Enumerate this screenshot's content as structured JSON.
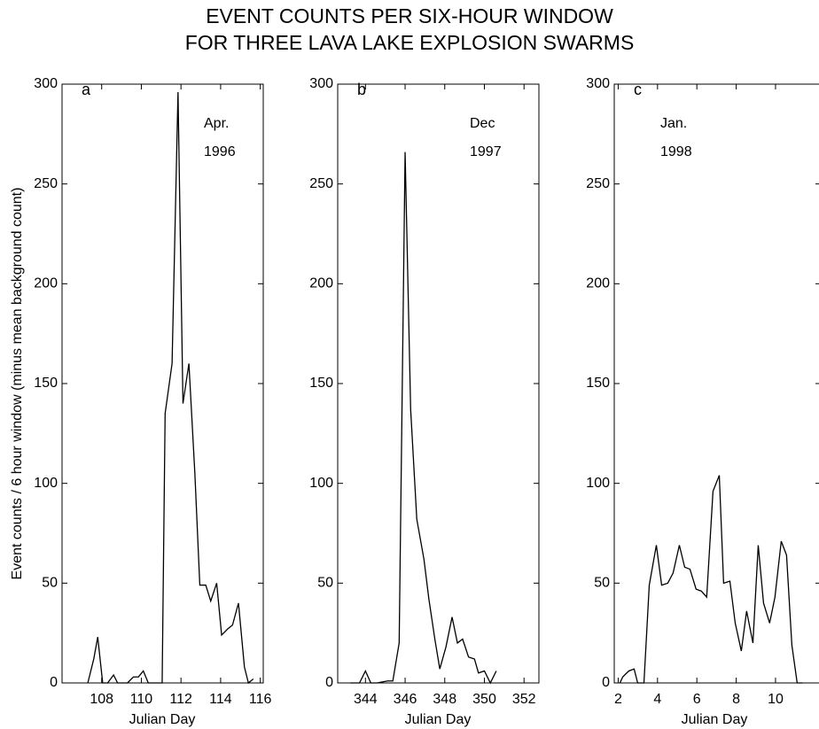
{
  "title": [
    "EVENT COUNTS PER SIX-HOUR WINDOW",
    "FOR THREE LAVA LAKE EXPLOSION SWARMS"
  ],
  "chart_data": [
    {
      "type": "line",
      "panel": "a",
      "annotation": [
        "Apr.",
        "1996"
      ],
      "ylabel": "Event counts / 6 hour window (minus mean background count)",
      "xlabel": "Julian Day",
      "xlim": [
        106,
        116.15
      ],
      "xticks": [
        108,
        110,
        112,
        114,
        116
      ],
      "ylim": [
        0,
        300
      ],
      "yticks": [
        0,
        50,
        100,
        150,
        200,
        250,
        300
      ],
      "series": [
        {
          "color": "#000000",
          "x": [
            107.3,
            107.6,
            107.8,
            108.05,
            108.3,
            108.6,
            108.8,
            109.05,
            109.3,
            109.6,
            109.85,
            110.1,
            110.35,
            110.6,
            110.85,
            111.05,
            111.2,
            111.55,
            111.85,
            112.1,
            112.4,
            112.7,
            112.95,
            113.25,
            113.5,
            113.8,
            114.05,
            114.35,
            114.6,
            114.9,
            115.2,
            115.4,
            115.65
          ],
          "values": [
            0,
            12,
            23,
            0,
            0,
            4,
            0,
            0,
            0,
            3,
            3,
            6,
            0,
            0,
            0,
            0,
            135,
            160,
            296,
            140,
            160,
            105,
            49,
            49,
            41,
            50,
            24,
            27,
            29,
            40,
            8,
            0,
            2
          ]
        }
      ]
    },
    {
      "type": "line",
      "panel": "b",
      "annotation": [
        "Dec",
        "1997"
      ],
      "xlabel": "Julian Day",
      "xlim": [
        342.6,
        352.75
      ],
      "xticks": [
        344,
        346,
        348,
        350,
        352
      ],
      "ylim": [
        0,
        300
      ],
      "yticks": [
        0,
        50,
        100,
        150,
        200,
        250,
        300
      ],
      "series": [
        {
          "color": "#000000",
          "x": [
            343.24,
            343.7,
            344,
            344.27,
            344.58,
            345.12,
            345.38,
            345.7,
            346.0,
            346.28,
            346.59,
            346.95,
            347.2,
            347.5,
            347.75,
            348.06,
            348.37,
            348.64,
            348.9,
            349.2,
            349.5,
            349.7,
            350.0,
            350.3,
            350.6
          ],
          "values": [
            0,
            0,
            6,
            0,
            0,
            1,
            1,
            20,
            266,
            137,
            82,
            62,
            42,
            22,
            7,
            18,
            33,
            20,
            22,
            13,
            12,
            5,
            6,
            0,
            6
          ]
        }
      ]
    },
    {
      "type": "line",
      "panel": "c",
      "annotation": [
        "Jan.",
        "1998"
      ],
      "xlabel": "Julian Day",
      "xlim": [
        1.8,
        12.3
      ],
      "xticks": [
        2,
        4,
        6,
        8,
        10
      ],
      "ylim": [
        0,
        300
      ],
      "yticks": [
        0,
        50,
        100,
        150,
        200,
        250,
        300
      ],
      "series": [
        {
          "color": "#000000",
          "x": [
            2.09,
            2.23,
            2.54,
            2.81,
            2.99,
            3.31,
            3.58,
            3.94,
            4.21,
            4.52,
            4.79,
            5.11,
            5.38,
            5.65,
            5.96,
            6.23,
            6.5,
            6.82,
            7.14,
            7.36,
            7.68,
            7.95,
            8.26,
            8.53,
            8.85,
            9.12,
            9.39,
            9.7,
            9.97,
            10.29,
            10.56,
            10.83,
            11.1,
            11.37
          ],
          "values": [
            0,
            3,
            6,
            7,
            0,
            0,
            49,
            69,
            49,
            50,
            55,
            69,
            58,
            57,
            47,
            46,
            43,
            96,
            104,
            50,
            51,
            30,
            16,
            36,
            20,
            69,
            40,
            30,
            43,
            71,
            64,
            19,
            0,
            0
          ]
        }
      ]
    }
  ]
}
